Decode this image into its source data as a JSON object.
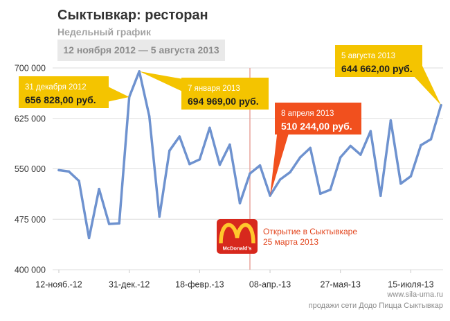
{
  "chart_data": {
    "type": "line",
    "title": "Сыктывкар: ресторан",
    "subtitle": "Недельный график",
    "date_range": "12 ноября 2012 — 5 августа 2013",
    "ylim": [
      400000,
      700000
    ],
    "grid": true,
    "y_ticks": [
      {
        "y": 700000,
        "label": "700 000"
      },
      {
        "y": 625000,
        "label": "625 000"
      },
      {
        "y": 550000,
        "label": "550 000"
      },
      {
        "y": 475000,
        "label": "475 000"
      },
      {
        "y": 400000,
        "label": "400 000"
      }
    ],
    "x_ticks": [
      {
        "x": "2012-11-12",
        "label": "12-нояб.-12"
      },
      {
        "x": "2012-12-31",
        "label": "31-дек.-12"
      },
      {
        "x": "2013-02-18",
        "label": "18-февр.-13"
      },
      {
        "x": "2013-04-08",
        "label": "08-апр.-13"
      },
      {
        "x": "2013-05-27",
        "label": "27-мая-13"
      },
      {
        "x": "2013-07-15",
        "label": "15-июля-13"
      }
    ],
    "series": [
      {
        "color": "#6e92cf",
        "x": [
          "2012-11-12",
          "2012-11-19",
          "2012-11-26",
          "2012-12-03",
          "2012-12-10",
          "2012-12-17",
          "2012-12-24",
          "2012-12-31",
          "2013-01-07",
          "2013-01-14",
          "2013-01-21",
          "2013-01-28",
          "2013-02-04",
          "2013-02-11",
          "2013-02-18",
          "2013-02-25",
          "2013-03-04",
          "2013-03-11",
          "2013-03-18",
          "2013-03-25",
          "2013-04-01",
          "2013-04-08",
          "2013-04-15",
          "2013-04-22",
          "2013-04-29",
          "2013-05-06",
          "2013-05-13",
          "2013-05-20",
          "2013-05-27",
          "2013-06-03",
          "2013-06-10",
          "2013-06-17",
          "2013-06-24",
          "2013-07-01",
          "2013-07-08",
          "2013-07-15",
          "2013-07-22",
          "2013-07-29",
          "2013-08-05"
        ],
        "y": [
          548000,
          546000,
          532000,
          447000,
          520000,
          468000,
          469000,
          656828,
          694969,
          628000,
          479000,
          577000,
          598000,
          557000,
          564000,
          611000,
          556000,
          586000,
          499000,
          543000,
          555000,
          510244,
          534000,
          545000,
          567000,
          581000,
          513000,
          519000,
          567000,
          584000,
          571000,
          606000,
          510000,
          622000,
          528000,
          539000,
          585000,
          594000,
          644662
        ]
      }
    ],
    "callouts": [
      {
        "x": "2012-12-31",
        "date_label": "31 декабря 2012",
        "value_label": "656 828,00 руб.",
        "color": "#f4c400",
        "date_color": "#ffffff",
        "label_color": "#1e1e1e"
      },
      {
        "x": "2013-01-07",
        "date_label": "7 января 2013",
        "value_label": "694 969,00 руб.",
        "color": "#f4c400",
        "date_color": "#ffffff",
        "label_color": "#1e1e1e"
      },
      {
        "x": "2013-04-08",
        "date_label": "8 апреля 2013",
        "value_label": "510 244,00 руб.",
        "color": "#f1501e",
        "date_color": "#ffffff",
        "label_color": "#ffffff"
      },
      {
        "x": "2013-08-05",
        "date_label": "5 августа 2013",
        "value_label": "644 662,00 руб.",
        "color": "#f4c400",
        "date_color": "#ffffff",
        "label_color": "#1e1e1e"
      }
    ],
    "event": {
      "x": "2013-03-25",
      "text": "Открытие в Сыктывкаре",
      "date_label": "25 марта 2013",
      "logo": "mcdonalds-logo",
      "logo_text": "McDonald's",
      "logo_colors": {
        "background": "#d7281d",
        "arches": "#ffc72c"
      },
      "color": "#e2441c",
      "line_color": "#e9a39c"
    }
  },
  "footer": {
    "site": "www.sila-uma.ru",
    "note": "продажи сети Додо Пицца Сыктывкар"
  }
}
